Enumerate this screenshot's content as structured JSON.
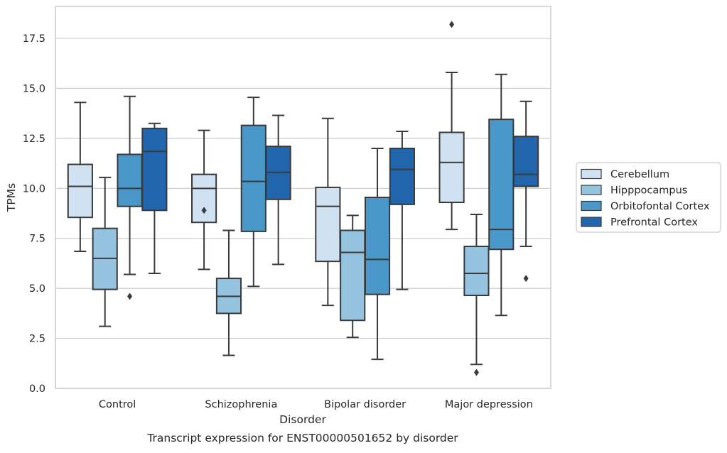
{
  "chart_data": {
    "type": "boxplot",
    "title": "",
    "caption": "Transcript expression for ENST00000501652 by disorder",
    "xlabel": "Disorder",
    "ylabel": "TPMs",
    "ylim": [
      0,
      19.1
    ],
    "yticks": [
      0.0,
      2.5,
      5.0,
      7.5,
      10.0,
      12.5,
      15.0,
      17.5
    ],
    "ytick_labels": [
      "0.0",
      "2.5",
      "5.0",
      "7.5",
      "10.0",
      "12.5",
      "15.0",
      "17.5"
    ],
    "grid": "horizontal",
    "legend_position": "right",
    "categories": [
      "Control",
      "Schizophrenia",
      "Bipolar disorder",
      "Major depression"
    ],
    "series": [
      {
        "name": "Cerebellum",
        "color": "#d0e1f2",
        "boxes": [
          {
            "whisker_low": 6.85,
            "q1": 8.55,
            "median": 10.1,
            "q3": 11.2,
            "whisker_high": 14.3,
            "outliers": []
          },
          {
            "whisker_low": 5.95,
            "q1": 8.3,
            "median": 10.0,
            "q3": 10.7,
            "whisker_high": 12.9,
            "outliers": [
              8.9
            ]
          },
          {
            "whisker_low": 4.15,
            "q1": 6.35,
            "median": 9.1,
            "q3": 10.05,
            "whisker_high": 13.5,
            "outliers": []
          },
          {
            "whisker_low": 7.95,
            "q1": 9.3,
            "median": 11.3,
            "q3": 12.8,
            "whisker_high": 15.8,
            "outliers": [
              18.2
            ]
          }
        ]
      },
      {
        "name": "Hipppocampus",
        "color": "#94c4df",
        "boxes": [
          {
            "whisker_low": 3.1,
            "q1": 4.95,
            "median": 6.5,
            "q3": 8.0,
            "whisker_high": 10.55,
            "outliers": []
          },
          {
            "whisker_low": 1.65,
            "q1": 3.75,
            "median": 4.6,
            "q3": 5.5,
            "whisker_high": 7.9,
            "outliers": []
          },
          {
            "whisker_low": 2.55,
            "q1": 3.4,
            "median": 6.8,
            "q3": 7.9,
            "whisker_high": 8.65,
            "outliers": []
          },
          {
            "whisker_low": 1.2,
            "q1": 4.65,
            "median": 5.75,
            "q3": 7.1,
            "whisker_high": 8.7,
            "outliers": [
              0.8
            ]
          }
        ]
      },
      {
        "name": "Orbitofontal Cortex",
        "color": "#4a98c9",
        "boxes": [
          {
            "whisker_low": 5.7,
            "q1": 9.1,
            "median": 10.0,
            "q3": 11.7,
            "whisker_high": 14.6,
            "outliers": [
              4.6
            ]
          },
          {
            "whisker_low": 5.1,
            "q1": 7.85,
            "median": 10.35,
            "q3": 13.15,
            "whisker_high": 14.55,
            "outliers": []
          },
          {
            "whisker_low": 1.45,
            "q1": 4.7,
            "median": 6.45,
            "q3": 9.55,
            "whisker_high": 12.0,
            "outliers": []
          },
          {
            "whisker_low": 3.65,
            "q1": 6.95,
            "median": 7.95,
            "q3": 13.45,
            "whisker_high": 15.7,
            "outliers": []
          }
        ]
      },
      {
        "name": "Prefrontal Cortex",
        "color": "#2166ac",
        "boxes": [
          {
            "whisker_low": 5.75,
            "q1": 8.9,
            "median": 11.85,
            "q3": 13.0,
            "whisker_high": 13.25,
            "outliers": []
          },
          {
            "whisker_low": 6.2,
            "q1": 9.45,
            "median": 10.8,
            "q3": 12.1,
            "whisker_high": 13.65,
            "outliers": []
          },
          {
            "whisker_low": 4.95,
            "q1": 9.2,
            "median": 10.95,
            "q3": 12.0,
            "whisker_high": 12.85,
            "outliers": []
          },
          {
            "whisker_low": 7.1,
            "q1": 10.1,
            "median": 10.7,
            "q3": 12.6,
            "whisker_high": 14.35,
            "outliers": [
              5.5
            ]
          }
        ]
      }
    ]
  }
}
